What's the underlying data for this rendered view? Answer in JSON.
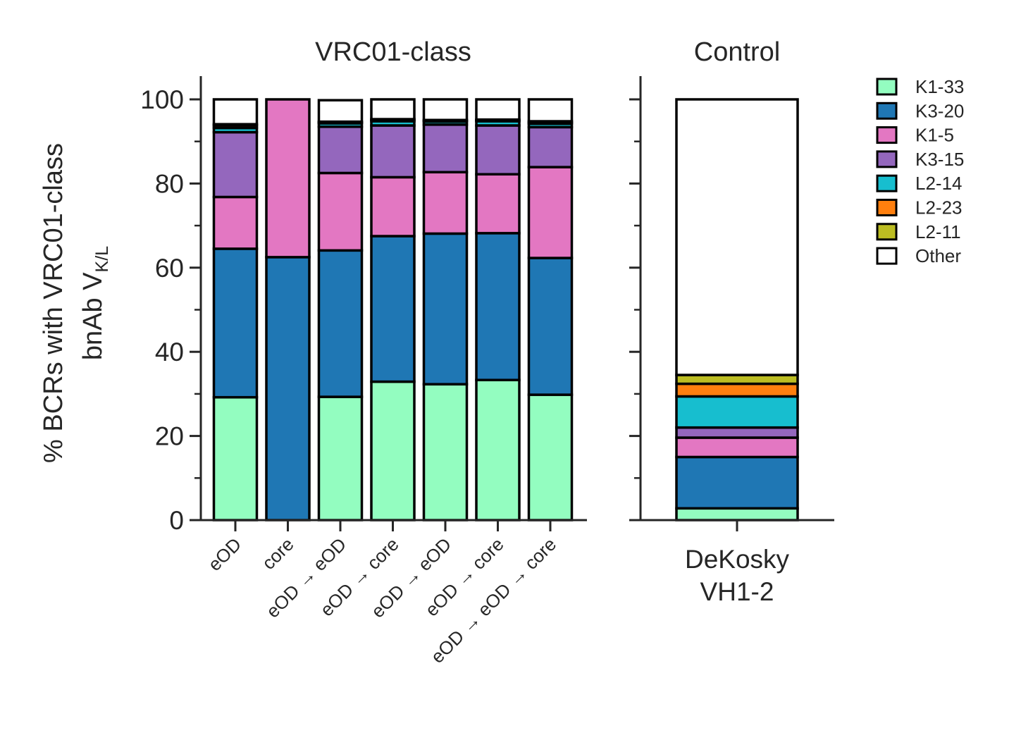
{
  "chart_data": [
    {
      "type": "bar",
      "stacked": true,
      "title": "VRC01-class",
      "ylabel_line1": "% BCRs with VRC01-class",
      "ylabel_line2_main": "bnAb V",
      "ylabel_line2_sub": "K/L",
      "ylim": [
        0,
        100
      ],
      "yticks": [
        0,
        20,
        40,
        60,
        80,
        100
      ],
      "yticks_minor": [
        10,
        30,
        50,
        70,
        90
      ],
      "categories": [
        "eOD",
        "core",
        "eOD → eOD",
        "eOD → core",
        "eOD → eOD",
        "eOD → core",
        "eOD → eOD → core"
      ],
      "series": [
        {
          "name": "K1-33",
          "values": [
            29.2,
            0,
            29.3,
            32.9,
            32.3,
            33.3,
            29.8
          ]
        },
        {
          "name": "K3-20",
          "values": [
            35.3,
            62.5,
            34.8,
            34.6,
            35.8,
            34.9,
            32.5
          ]
        },
        {
          "name": "K1-5",
          "values": [
            12.3,
            37.5,
            18.4,
            14.0,
            14.6,
            14.0,
            21.6
          ]
        },
        {
          "name": "K3-15",
          "values": [
            15.4,
            0,
            11.0,
            12.3,
            11.3,
            11.6,
            9.5
          ]
        },
        {
          "name": "L2-14",
          "values": [
            1.0,
            0,
            0.8,
            1.0,
            0.7,
            1.0,
            0.8
          ]
        },
        {
          "name": "L2-23",
          "values": [
            0.6,
            0,
            0.2,
            0.3,
            0.2,
            0.2,
            0.3
          ]
        },
        {
          "name": "L2-11",
          "values": [
            0.3,
            0,
            0.2,
            0.2,
            0.2,
            0.2,
            0.3
          ]
        },
        {
          "name": "Other",
          "values": [
            5.9,
            0,
            5.1,
            4.7,
            4.9,
            4.8,
            5.2
          ]
        }
      ]
    },
    {
      "type": "bar",
      "stacked": true,
      "title": "Control",
      "ylim": [
        0,
        100
      ],
      "categories": [
        "DeKosky\nVH1-2"
      ],
      "series": [
        {
          "name": "K1-33",
          "values": [
            2.8
          ]
        },
        {
          "name": "K3-20",
          "values": [
            12.2
          ]
        },
        {
          "name": "K1-5",
          "values": [
            4.6
          ]
        },
        {
          "name": "K3-15",
          "values": [
            2.4
          ]
        },
        {
          "name": "L2-14",
          "values": [
            7.4
          ]
        },
        {
          "name": "L2-23",
          "values": [
            3.0
          ]
        },
        {
          "name": "L2-11",
          "values": [
            2.1
          ]
        },
        {
          "name": "Other",
          "values": [
            65.5
          ]
        }
      ]
    }
  ],
  "legend": {
    "position": "right",
    "items": [
      {
        "label": "K1-33",
        "color": "#93fdc0"
      },
      {
        "label": "K3-20",
        "color": "#1f77b4"
      },
      {
        "label": "K1-5",
        "color": "#e377c2"
      },
      {
        "label": "K3-15",
        "color": "#9467bd"
      },
      {
        "label": "L2-14",
        "color": "#17becf"
      },
      {
        "label": "L2-23",
        "color": "#ff7f0e"
      },
      {
        "label": "L2-11",
        "color": "#bcbd22"
      },
      {
        "label": "Other",
        "color": "#ffffff"
      }
    ]
  }
}
